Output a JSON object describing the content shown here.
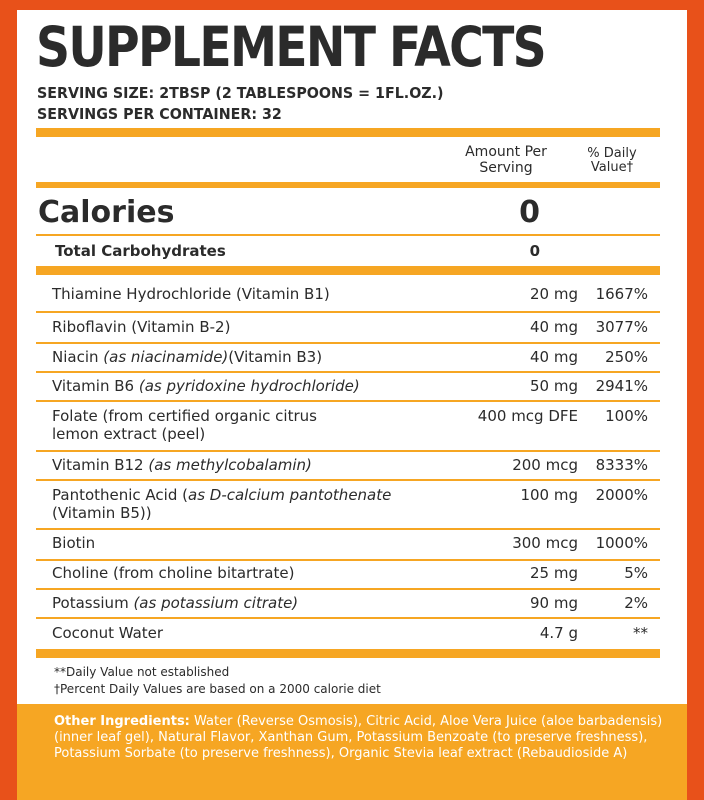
{
  "title": "SUPPLEMENT FACTS",
  "serving_size": {
    "label": "SERVING SIZE:",
    "value": "2TBSP (2 TABLESPOONS = 1FL.OZ.)"
  },
  "servings_per_container": {
    "label": "SERVINGS PER CONTAINER:",
    "value": "32"
  },
  "header": {
    "amount_line1": "Amount Per",
    "amount_line2": "Serving",
    "dv_line1": "% Daily",
    "dv_line2": "Value†"
  },
  "calories": {
    "label": "Calories",
    "value": "0"
  },
  "total_carbs": {
    "label": "Total Carbohydrates",
    "value": "0"
  },
  "nutrients": [
    {
      "name": "Thiamine Hydrochloride (Vitamin B1)",
      "amount": "20 mg",
      "dv": "1667%"
    },
    {
      "name": "Riboflavin (Vitamin B-2)",
      "amount": "40 mg",
      "dv": "3077%"
    },
    {
      "name_pre": "Niacin ",
      "name_italic": "(as niacinamide)",
      "name_post": "(Vitamin B3)",
      "amount": "40 mg",
      "dv": "250%"
    },
    {
      "name_pre": "Vitamin B6 ",
      "name_italic": "(as pyridoxine hydrochloride)",
      "amount": "50 mg",
      "dv": "2941%"
    },
    {
      "name_line1": "Folate (from certified organic citrus",
      "name_line2": "lemon extract (peel)",
      "amount": "400 mcg DFE",
      "dv": "100%"
    },
    {
      "name_pre": "Vitamin B12 ",
      "name_italic": "(as methylcobalamin)",
      "amount": "200 mcg",
      "dv": "8333%"
    },
    {
      "name_pre": "Pantothenic Acid (",
      "name_italic": "as D-calcium pantothenate",
      "name_line2": "(Vitamin B5))",
      "amount": "100 mg",
      "dv": "2000%"
    },
    {
      "name": "Biotin",
      "amount": "300 mcg",
      "dv": "1000%"
    },
    {
      "name": "Choline (from choline bitartrate)",
      "amount": "25 mg",
      "dv": "5%"
    },
    {
      "name_pre": "Potassium ",
      "name_italic": "(as potassium citrate)",
      "amount": "90 mg",
      "dv": "2%"
    },
    {
      "name": "Coconut Water",
      "amount": "4.7 g",
      "dv": "**"
    }
  ],
  "footnotes": [
    "**Daily Value not established",
    "†Percent Daily Values are based on a 2000 calorie diet"
  ],
  "other_ingredients": {
    "label": "Other Ingredients:",
    "text": " Water (Reverse Osmosis), Citric Acid, Aloe Vera Juice (aloe barbadensis) (inner leaf gel), Natural Flavor, Xanthan Gum, Potassium Benzoate (to preserve freshness), Potassium Sorbate (to preserve freshness), Organic Stevia leaf extract (Rebaudioside A)"
  },
  "colors": {
    "background": "#e8511a",
    "accent": "#f6a623",
    "text": "#2b2b2b"
  }
}
